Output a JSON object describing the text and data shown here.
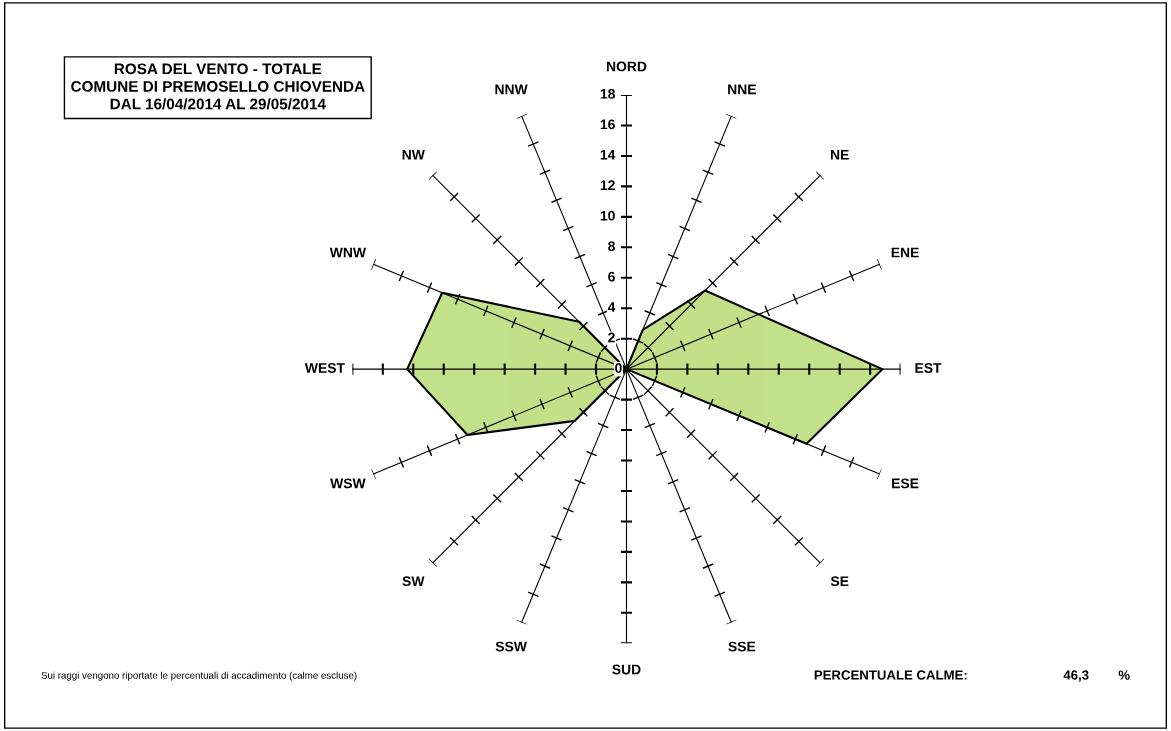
{
  "chart_data": {
    "type": "radar",
    "title": "ROSA DEL VENTO - TOTALE\nCOMUNE DI PREMOSELLO CHIOVENDA\nDAL 16/04/2014 AL 29/05/2014",
    "categories": [
      "NORD",
      "NNE",
      "NE",
      "ENE",
      "EST",
      "ESE",
      "SE",
      "SSE",
      "SUD",
      "SSW",
      "SW",
      "WSW",
      "WEST",
      "WNW",
      "NW",
      "NNW"
    ],
    "series": [
      {
        "color": "#9ccc3c",
        "values": [
          0,
          2.8,
          7.3,
          9.4,
          16.8,
          12.8,
          0,
          0,
          0,
          0,
          4.8,
          11.3,
          14.4,
          13.1,
          4.4,
          0
        ]
      }
    ],
    "ylim": [
      0,
      18
    ],
    "yticks": [
      0,
      2,
      4,
      6,
      8,
      10,
      12,
      14,
      16,
      18
    ],
    "annotations": [
      "Sui raggi vengono riportate le percentuali di accadimento (calme escluse)",
      "PERCENTUALE CALME:",
      "46,3",
      "%"
    ]
  }
}
